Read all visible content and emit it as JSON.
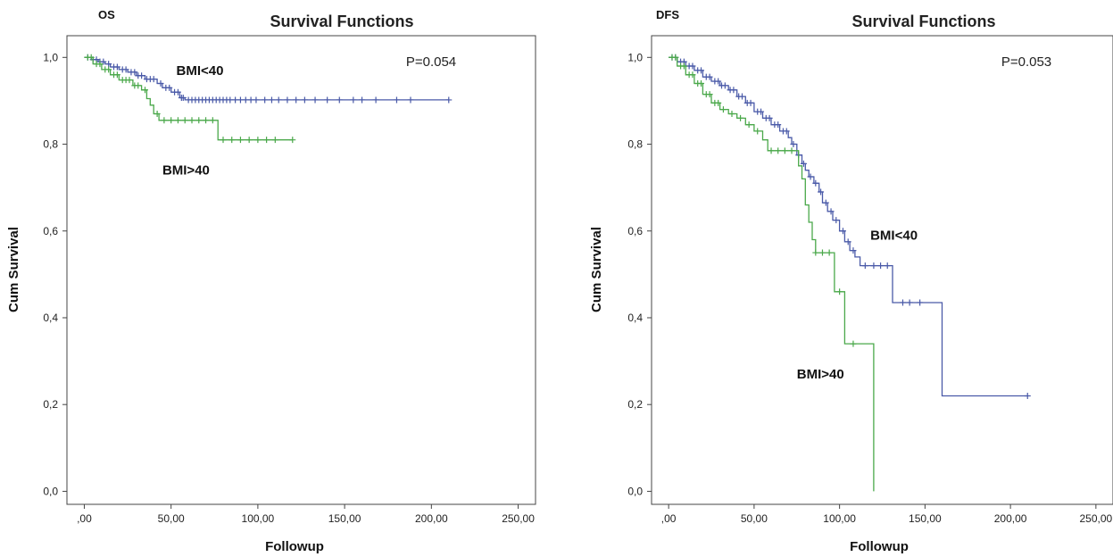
{
  "chart_data": [
    {
      "type": "line",
      "tag": "OS",
      "title": "Survival Functions",
      "xlabel": "Followup",
      "ylabel": "Cum Survival",
      "annotation": "P=0.054",
      "xlim": [
        -10,
        260
      ],
      "ylim": [
        -0.03,
        1.05
      ],
      "xticks": [
        0,
        50,
        100,
        150,
        200,
        250
      ],
      "xtick_labels": [
        ",00",
        "50,00",
        "100,00",
        "150,00",
        "200,00",
        "250,00"
      ],
      "yticks": [
        0,
        0.2,
        0.4,
        0.6,
        0.8,
        1.0
      ],
      "ytick_labels": [
        "0,0",
        "0,2",
        "0,4",
        "0,6",
        "0,8",
        "1,0"
      ],
      "series": [
        {
          "name": "BMI<40",
          "color": "#4a5aa8",
          "steps": [
            [
              0,
              1.0
            ],
            [
              4,
              0.995
            ],
            [
              8,
              0.99
            ],
            [
              12,
              0.985
            ],
            [
              15,
              0.978
            ],
            [
              20,
              0.972
            ],
            [
              25,
              0.966
            ],
            [
              30,
              0.958
            ],
            [
              35,
              0.95
            ],
            [
              42,
              0.94
            ],
            [
              45,
              0.93
            ],
            [
              50,
              0.92
            ],
            [
              55,
              0.907
            ],
            [
              58,
              0.902
            ],
            [
              210,
              0.902
            ]
          ],
          "censors": [
            2,
            5,
            7,
            9,
            11,
            14,
            17,
            19,
            22,
            24,
            27,
            29,
            31,
            33,
            36,
            38,
            40,
            44,
            47,
            49,
            52,
            54,
            56,
            57,
            60,
            62,
            64,
            66,
            68,
            70,
            72,
            74,
            76,
            78,
            80,
            82,
            84,
            87,
            90,
            93,
            96,
            99,
            104,
            108,
            112,
            117,
            122,
            127,
            133,
            140,
            147,
            155,
            160,
            168,
            180,
            188,
            210
          ]
        },
        {
          "name": "BMI>40",
          "color": "#4aa84a",
          "steps": [
            [
              0,
              1.0
            ],
            [
              5,
              0.985
            ],
            [
              10,
              0.972
            ],
            [
              15,
              0.96
            ],
            [
              20,
              0.948
            ],
            [
              28,
              0.935
            ],
            [
              33,
              0.925
            ],
            [
              36,
              0.905
            ],
            [
              38,
              0.89
            ],
            [
              40,
              0.87
            ],
            [
              43,
              0.855
            ],
            [
              76,
              0.855
            ],
            [
              77,
              0.81
            ],
            [
              120,
              0.81
            ]
          ],
          "censors": [
            2,
            4,
            7,
            9,
            12,
            14,
            17,
            19,
            22,
            24,
            26,
            29,
            31,
            35,
            42,
            46,
            50,
            54,
            58,
            62,
            66,
            70,
            74,
            80,
            85,
            90,
            95,
            100,
            105,
            110,
            120
          ]
        }
      ],
      "series_labels": [
        {
          "text": "BMI<40",
          "x": 53,
          "y": 0.96
        },
        {
          "text": "BMI>40",
          "x": 45,
          "y": 0.73
        }
      ]
    },
    {
      "type": "line",
      "tag": "DFS",
      "title": "Survival Functions",
      "xlabel": "Followup",
      "ylabel": "Cum Survival",
      "annotation": "P=0.053",
      "xlim": [
        -10,
        260
      ],
      "ylim": [
        -0.03,
        1.05
      ],
      "xticks": [
        0,
        50,
        100,
        150,
        200,
        250
      ],
      "xtick_labels": [
        ",00",
        "50,00",
        "100,00",
        "150,00",
        "200,00",
        "250,00"
      ],
      "yticks": [
        0,
        0.2,
        0.4,
        0.6,
        0.8,
        1.0
      ],
      "ytick_labels": [
        "0,0",
        "0,2",
        "0,4",
        "0,6",
        "0,8",
        "1,0"
      ],
      "series": [
        {
          "name": "BMI<40",
          "color": "#4a5aa8",
          "steps": [
            [
              0,
              1.0
            ],
            [
              5,
              0.99
            ],
            [
              10,
              0.98
            ],
            [
              15,
              0.97
            ],
            [
              20,
              0.955
            ],
            [
              25,
              0.945
            ],
            [
              30,
              0.935
            ],
            [
              35,
              0.925
            ],
            [
              40,
              0.91
            ],
            [
              45,
              0.895
            ],
            [
              50,
              0.875
            ],
            [
              55,
              0.86
            ],
            [
              60,
              0.845
            ],
            [
              65,
              0.83
            ],
            [
              70,
              0.815
            ],
            [
              72,
              0.8
            ],
            [
              75,
              0.775
            ],
            [
              78,
              0.755
            ],
            [
              80,
              0.74
            ],
            [
              82,
              0.725
            ],
            [
              85,
              0.71
            ],
            [
              88,
              0.69
            ],
            [
              90,
              0.665
            ],
            [
              93,
              0.645
            ],
            [
              96,
              0.625
            ],
            [
              100,
              0.6
            ],
            [
              103,
              0.575
            ],
            [
              106,
              0.555
            ],
            [
              109,
              0.54
            ],
            [
              112,
              0.52
            ],
            [
              130,
              0.52
            ],
            [
              131,
              0.435
            ],
            [
              159,
              0.435
            ],
            [
              160,
              0.22
            ],
            [
              210,
              0.22
            ]
          ],
          "censors": [
            2,
            4,
            7,
            9,
            12,
            14,
            17,
            19,
            22,
            24,
            27,
            29,
            31,
            33,
            36,
            38,
            41,
            43,
            46,
            48,
            52,
            54,
            57,
            59,
            62,
            64,
            67,
            69,
            73,
            76,
            79,
            83,
            86,
            89,
            92,
            95,
            98,
            102,
            105,
            108,
            115,
            120,
            124,
            128,
            137,
            141,
            147,
            210
          ]
        },
        {
          "name": "BMI>40",
          "color": "#4aa84a",
          "steps": [
            [
              0,
              1.0
            ],
            [
              5,
              0.98
            ],
            [
              10,
              0.96
            ],
            [
              15,
              0.94
            ],
            [
              20,
              0.915
            ],
            [
              25,
              0.895
            ],
            [
              30,
              0.88
            ],
            [
              35,
              0.87
            ],
            [
              40,
              0.86
            ],
            [
              45,
              0.845
            ],
            [
              50,
              0.83
            ],
            [
              55,
              0.81
            ],
            [
              58,
              0.785
            ],
            [
              74,
              0.785
            ],
            [
              76,
              0.75
            ],
            [
              78,
              0.72
            ],
            [
              80,
              0.66
            ],
            [
              82,
              0.62
            ],
            [
              84,
              0.58
            ],
            [
              86,
              0.55
            ],
            [
              96,
              0.55
            ],
            [
              97,
              0.46
            ],
            [
              102,
              0.46
            ],
            [
              103,
              0.34
            ],
            [
              120,
              0.34
            ],
            [
              120,
              0.0
            ]
          ],
          "censors": [
            2,
            4,
            7,
            9,
            12,
            14,
            17,
            19,
            22,
            24,
            27,
            29,
            32,
            37,
            42,
            47,
            52,
            60,
            64,
            68,
            72,
            86,
            90,
            94,
            100,
            108
          ]
        }
      ],
      "series_labels": [
        {
          "text": "BMI<40",
          "x": 118,
          "y": 0.58
        },
        {
          "text": "BMI>40",
          "x": 75,
          "y": 0.26
        }
      ]
    }
  ]
}
